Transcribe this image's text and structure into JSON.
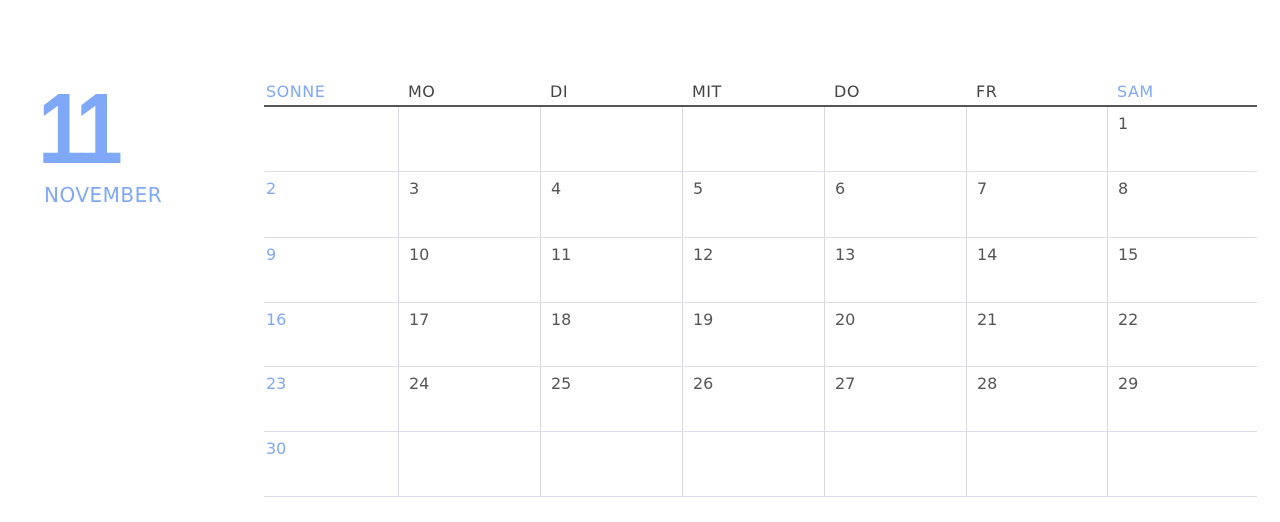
{
  "month_number": "11",
  "month_name": "NOVEMBER",
  "accent_color": "#7fa8f8",
  "weekdays": [
    "SONNE",
    "MO",
    "DI",
    "MIT",
    "DO",
    "FR",
    "SAM"
  ],
  "weeks": [
    [
      "",
      "",
      "",
      "",
      "",
      "",
      "1"
    ],
    [
      "2",
      "3",
      "4",
      "5",
      "6",
      "7",
      "8"
    ],
    [
      "9",
      "10",
      "11",
      "12",
      "13",
      "14",
      "15"
    ],
    [
      "16",
      "17",
      "18",
      "19",
      "20",
      "21",
      "22"
    ],
    [
      "23",
      "24",
      "25",
      "26",
      "27",
      "28",
      "29"
    ],
    [
      "30",
      "",
      "",
      "",
      "",
      "",
      ""
    ]
  ]
}
